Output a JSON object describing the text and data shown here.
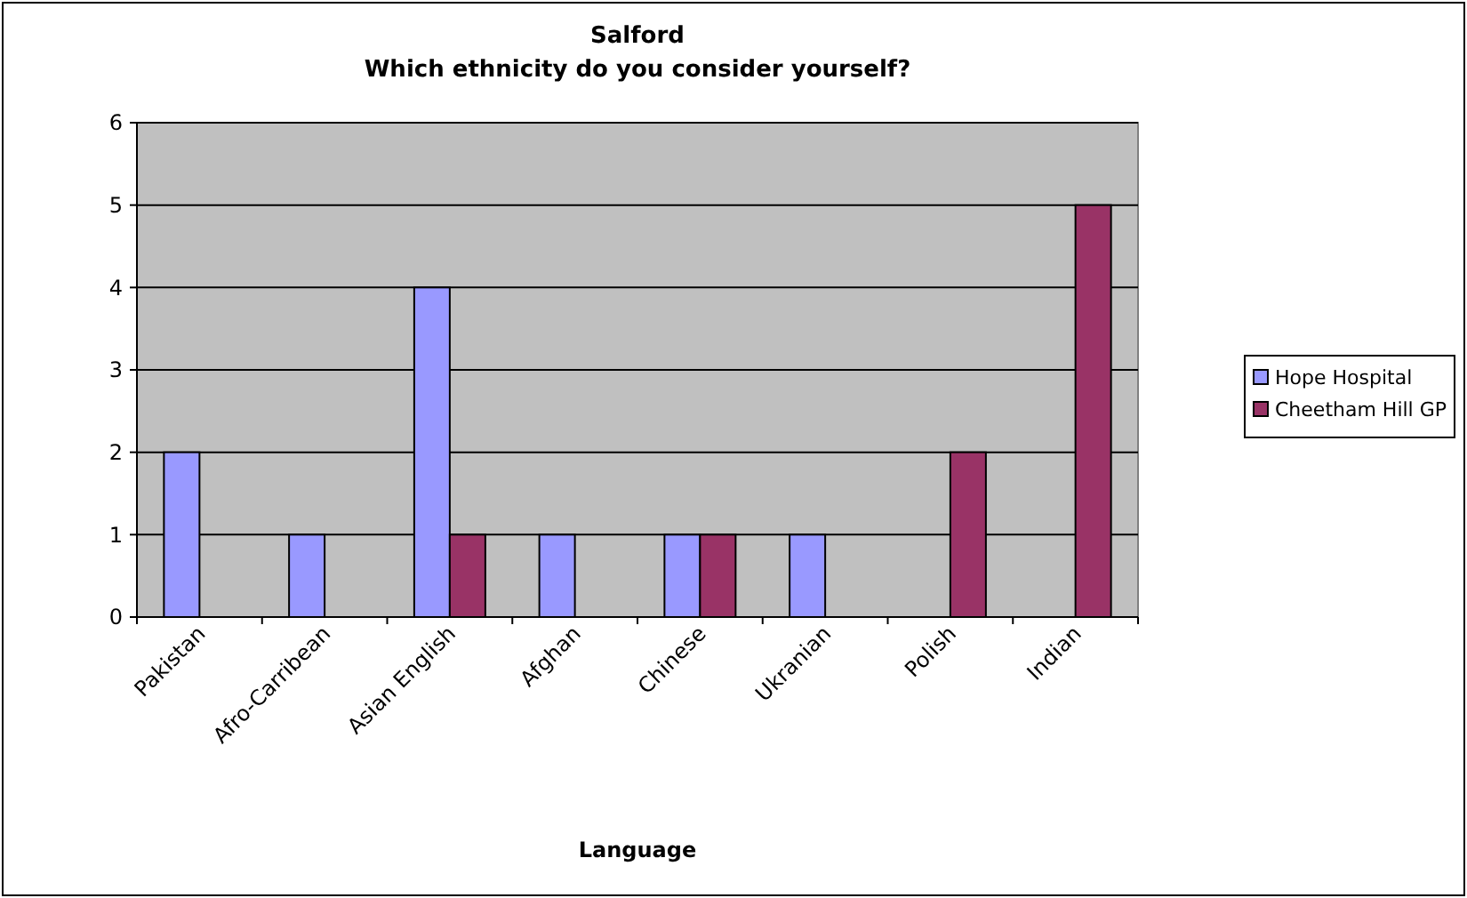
{
  "chart_data": {
    "type": "bar",
    "title": "Salford",
    "subtitle": "Which ethnicity do you consider yourself?",
    "xlabel": "Language",
    "categories": [
      "Pakistan",
      "Afro-Carribean",
      "Asian English",
      "Afghan",
      "Chinese",
      "Ukranian",
      "Polish",
      "Indian"
    ],
    "series": [
      {
        "name": "Hope Hospital",
        "color": "#9999ff",
        "values": [
          2,
          1,
          4,
          1,
          1,
          1,
          0,
          0
        ]
      },
      {
        "name": "Cheetham Hill GP",
        "color": "#993366",
        "values": [
          0,
          0,
          1,
          0,
          1,
          0,
          2,
          5
        ]
      }
    ],
    "ylim": [
      0,
      6
    ],
    "yticks": [
      0,
      1,
      2,
      3,
      4,
      5,
      6
    ],
    "grid": "y",
    "legend": "right"
  }
}
